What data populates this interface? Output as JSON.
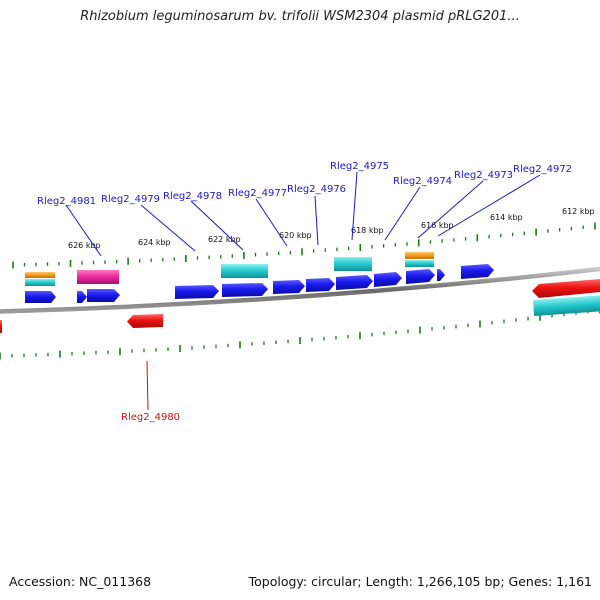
{
  "title": "Rhizobium leguminosarum bv. trifolii WSM2304 plasmid pRLG201...",
  "footer": {
    "accession": "Accession: NC_011368",
    "topology": "Topology: circular; Length: 1,266,105 bp; Genes: 1,161"
  },
  "colors": {
    "forward_gene": "#1a1aee",
    "reverse_gene": "#ee1111",
    "cyan_feature": "#22c8cc",
    "orange_feature": "#f39a1c",
    "magenta_feature": "#e8289a",
    "tick": "#1a7a1a",
    "backbone": "#8a8a8a",
    "forward_label": "#1a1acc",
    "reverse_label": "#cc1111"
  },
  "scale_labels": [
    "626 kbp",
    "624 kbp",
    "622 kbp",
    "620 kbp",
    "618 kbp",
    "616 kbp",
    "614 kbp",
    "612 kbp"
  ],
  "gene_labels": [
    {
      "text": "Rleg2_4981",
      "strand": "forward"
    },
    {
      "text": "Rleg2_4979",
      "strand": "forward"
    },
    {
      "text": "Rleg2_4978",
      "strand": "forward"
    },
    {
      "text": "Rleg2_4977",
      "strand": "forward"
    },
    {
      "text": "Rleg2_4976",
      "strand": "forward"
    },
    {
      "text": "Rleg2_4975",
      "strand": "forward"
    },
    {
      "text": "Rleg2_4974",
      "strand": "forward"
    },
    {
      "text": "Rleg2_4973",
      "strand": "forward"
    },
    {
      "text": "Rleg2_4972",
      "strand": "forward"
    },
    {
      "text": "Rleg2_4980",
      "strand": "reverse"
    }
  ]
}
